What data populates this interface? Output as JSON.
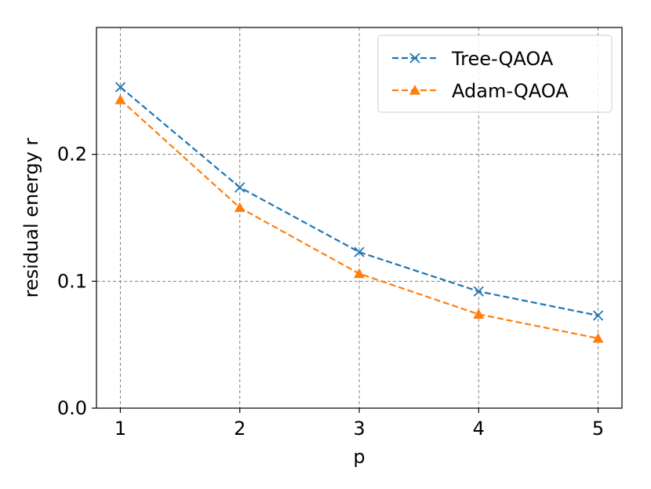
{
  "chart_data": {
    "type": "line",
    "title": "",
    "xlabel": "p",
    "ylabel": "residual energy r",
    "x": [
      1,
      2,
      3,
      4,
      5
    ],
    "xlim": [
      0.8,
      5.2
    ],
    "ylim": [
      0,
      0.3
    ],
    "xticks": [
      "1",
      "2",
      "3",
      "4",
      "5"
    ],
    "yticks": [
      "0.0",
      "0.1",
      "0.2"
    ],
    "grid": true,
    "legend_position": "top-right",
    "series": [
      {
        "name": "Tree-QAOA",
        "values": [
          0.253,
          0.174,
          0.123,
          0.092,
          0.073
        ],
        "color": "#1f77b4",
        "marker": "x",
        "line_style": "dashed"
      },
      {
        "name": "Adam-QAOA",
        "values": [
          0.243,
          0.158,
          0.106,
          0.074,
          0.055
        ],
        "color": "#ff7f0e",
        "marker": "triangle",
        "line_style": "dashed"
      }
    ]
  }
}
